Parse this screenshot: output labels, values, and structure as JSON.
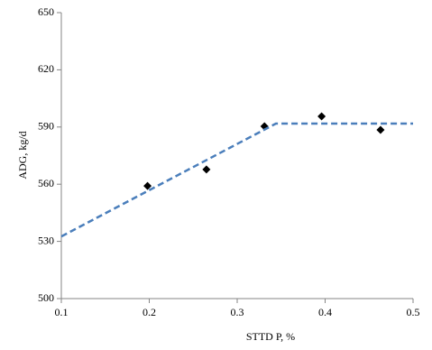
{
  "chart_data": {
    "type": "scatter",
    "x_label": "STTD P, %",
    "y_label": "ADG, kg/d",
    "xlim": [
      0.1,
      0.5
    ],
    "xticks": [
      0.1,
      0.2,
      0.3,
      0.4,
      0.5
    ],
    "ylim": [
      500,
      650
    ],
    "yticks": [
      500,
      530,
      560,
      590,
      620,
      650
    ],
    "grid": false,
    "series": [
      {
        "style": "marker",
        "color": "#000000",
        "x": [
          0.198,
          0.265,
          0.331,
          0.396,
          0.463
        ],
        "values": [
          559.1,
          567.7,
          590.4,
          595.6,
          588.5
        ]
      },
      {
        "style": "dashed-line",
        "color": "#4a7ebb",
        "x": [
          0.1,
          0.344,
          0.5
        ],
        "values": [
          532.6,
          591.8,
          591.8
        ]
      }
    ]
  }
}
